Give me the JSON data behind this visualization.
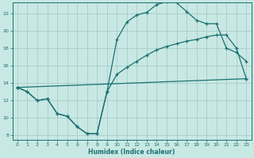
{
  "xlabel": "Humidex (Indice chaleur)",
  "xlim": [
    -0.5,
    23.5
  ],
  "ylim": [
    7.5,
    23.2
  ],
  "xticks": [
    0,
    1,
    2,
    3,
    4,
    5,
    6,
    7,
    8,
    9,
    10,
    11,
    12,
    13,
    14,
    15,
    16,
    17,
    18,
    19,
    20,
    21,
    22,
    23
  ],
  "yticks": [
    8,
    10,
    12,
    14,
    16,
    18,
    20,
    22
  ],
  "bg_color": "#c8e8e4",
  "line_color": "#1a7070",
  "grid_color": "#a0c8c4",
  "line1_x": [
    0,
    1,
    2,
    3,
    4,
    5,
    6,
    7,
    8,
    9,
    10,
    11,
    12,
    13,
    14,
    15,
    16,
    17,
    18,
    19,
    20,
    21,
    22,
    23
  ],
  "line1_y": [
    13.5,
    13.0,
    12.0,
    12.2,
    10.5,
    10.2,
    9.0,
    8.2,
    8.2,
    13.0,
    19.0,
    21.0,
    21.8,
    22.1,
    23.0,
    23.3,
    23.2,
    22.2,
    21.2,
    20.8,
    20.8,
    18.0,
    17.5,
    16.5
  ],
  "line2_x": [
    0,
    1,
    2,
    3,
    4,
    5,
    6,
    7,
    8,
    9,
    10,
    11,
    12,
    13,
    14,
    15,
    16,
    17,
    18,
    19,
    20,
    21,
    22,
    23
  ],
  "line2_y": [
    13.5,
    13.0,
    12.0,
    12.2,
    10.5,
    10.2,
    9.0,
    8.2,
    8.2,
    13.0,
    15.0,
    15.8,
    16.5,
    17.2,
    17.8,
    18.2,
    18.5,
    18.8,
    19.0,
    19.3,
    19.5,
    19.5,
    18.0,
    14.5
  ],
  "line3_x": [
    0,
    23
  ],
  "line3_y": [
    13.5,
    14.5
  ]
}
